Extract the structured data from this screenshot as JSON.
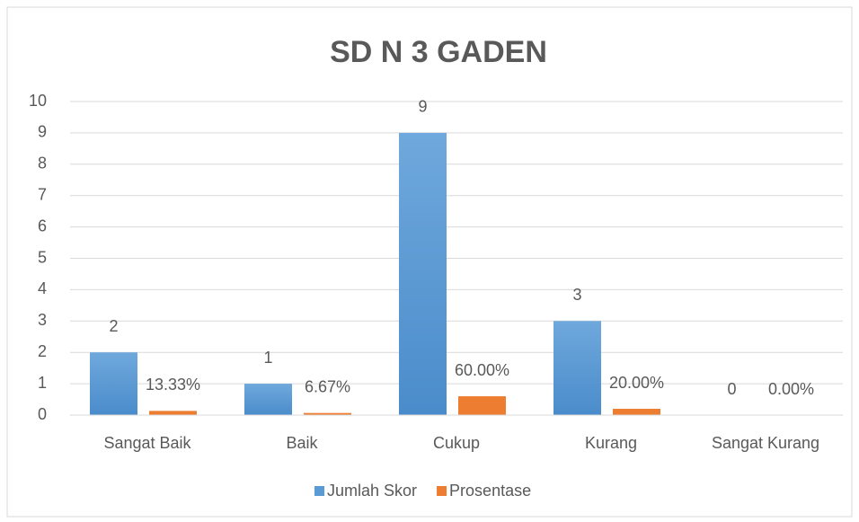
{
  "chart_data": {
    "type": "bar",
    "title": "SD N 3 GADEN",
    "categories": [
      "Sangat Baik",
      "Baik",
      "Cukup",
      "Kurang",
      "Sangat Kurang"
    ],
    "series": [
      {
        "name": "Jumlah Skor",
        "color": "#5b9bd5",
        "values": [
          2,
          1,
          9,
          3,
          0
        ]
      },
      {
        "name": "Prosentase",
        "color": "#ed7d31",
        "values": [
          0.1333,
          0.0667,
          0.6,
          0.2,
          0
        ],
        "value_labels": [
          "13.33%",
          "6.67%",
          "60.00%",
          "20.00%",
          "0.00%"
        ]
      }
    ],
    "ylim": [
      0,
      10
    ],
    "yticks": [
      0,
      1,
      2,
      3,
      4,
      5,
      6,
      7,
      8,
      9,
      10
    ],
    "grid": true,
    "legend": "bottom"
  }
}
